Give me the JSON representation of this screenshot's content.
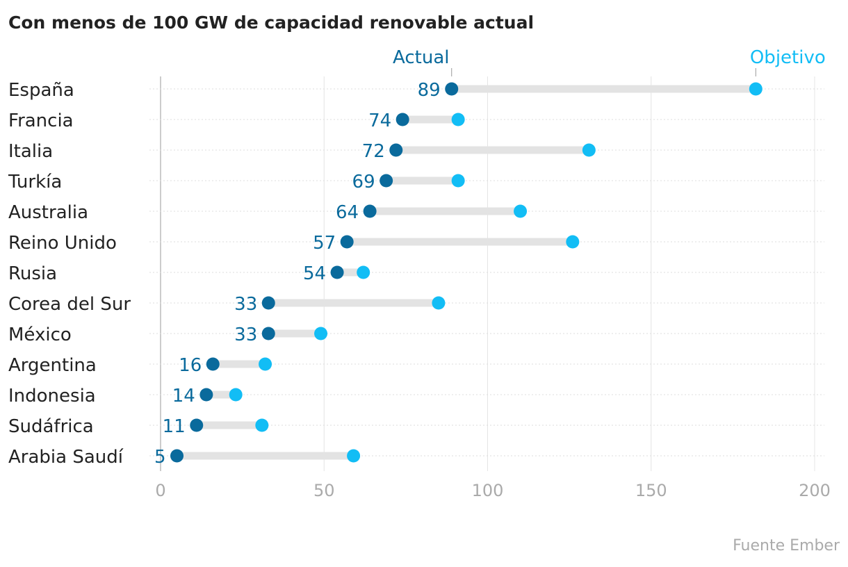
{
  "chart_data": {
    "type": "dumbbell",
    "title": "Con menos de 100 GW de capacidad renovable actual",
    "source": "Fuente Ember",
    "xlim": [
      0,
      200
    ],
    "xticks": [
      0,
      50,
      100,
      150,
      200
    ],
    "grid": true,
    "series": [
      {
        "name": "Actual",
        "color": "#0a6a9c"
      },
      {
        "name": "Objetivo",
        "color": "#12bdf5"
      }
    ],
    "categories": [
      "España",
      "Francia",
      "Italia",
      "Turkía",
      "Australia",
      "Reino Unido",
      "Rusia",
      "Corea del Sur",
      "México",
      "Argentina",
      "Indonesia",
      "Sudáfrica",
      "Arabia Saudí"
    ],
    "actual": [
      89,
      74,
      72,
      69,
      64,
      57,
      54,
      33,
      33,
      16,
      14,
      11,
      5
    ],
    "objetivo": [
      182,
      91,
      131,
      91,
      110,
      126,
      62,
      85,
      49,
      32,
      23,
      31,
      59
    ]
  }
}
